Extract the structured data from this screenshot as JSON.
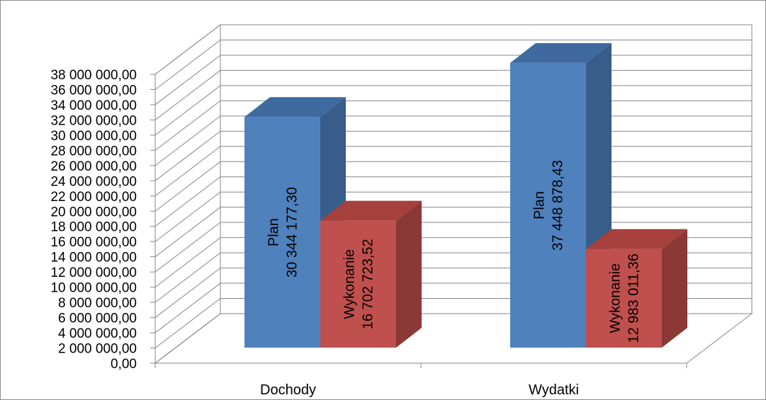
{
  "chart_data": {
    "type": "bar",
    "style": "3d-clustered-column",
    "categories": [
      "Dochody",
      "Wydatki"
    ],
    "series": [
      {
        "name": "Plan",
        "values": [
          30344177.3,
          37448878.43
        ],
        "color": "#4f81bd"
      },
      {
        "name": "Wykonanie",
        "values": [
          16702723.52,
          12983011.36
        ],
        "color": "#c0504d"
      }
    ],
    "ylim": [
      0,
      38000000
    ],
    "y_tick_step": 2000000,
    "y_tick_labels": [
      "0,00",
      "2 000 000,00",
      "4 000 000,00",
      "6 000 000,00",
      "8 000 000,00",
      "10 000 000,00",
      "12 000 000,00",
      "14 000 000,00",
      "16 000 000,00",
      "18 000 000,00",
      "20 000 000,00",
      "22 000 000,00",
      "24 000 000,00",
      "26 000 000,00",
      "28 000 000,00",
      "30 000 000,00",
      "32 000 000,00",
      "34 000 000,00",
      "36 000 000,00",
      "38 000 000,00"
    ],
    "data_labels": [
      {
        "category": "Dochody",
        "series": "Plan",
        "lines": [
          "Plan",
          "30 344 177,30"
        ]
      },
      {
        "category": "Dochody",
        "series": "Wykonanie",
        "lines": [
          "Wykonanie",
          "16 702 723,52"
        ]
      },
      {
        "category": "Wydatki",
        "series": "Plan",
        "lines": [
          "Plan",
          "37 448 878,43"
        ]
      },
      {
        "category": "Wydatki",
        "series": "Wykonanie",
        "lines": [
          "Wykonanie",
          "12 983 011,36"
        ]
      }
    ],
    "grid": true,
    "legend": "none",
    "colors": {
      "plan_front": "#4f81bd",
      "plan_side": "#385d8a",
      "plan_top": "#3f6aa0",
      "wyk_front": "#c0504d",
      "wyk_side": "#8c3836",
      "wyk_top": "#a5403d",
      "grid": "#868686"
    }
  }
}
